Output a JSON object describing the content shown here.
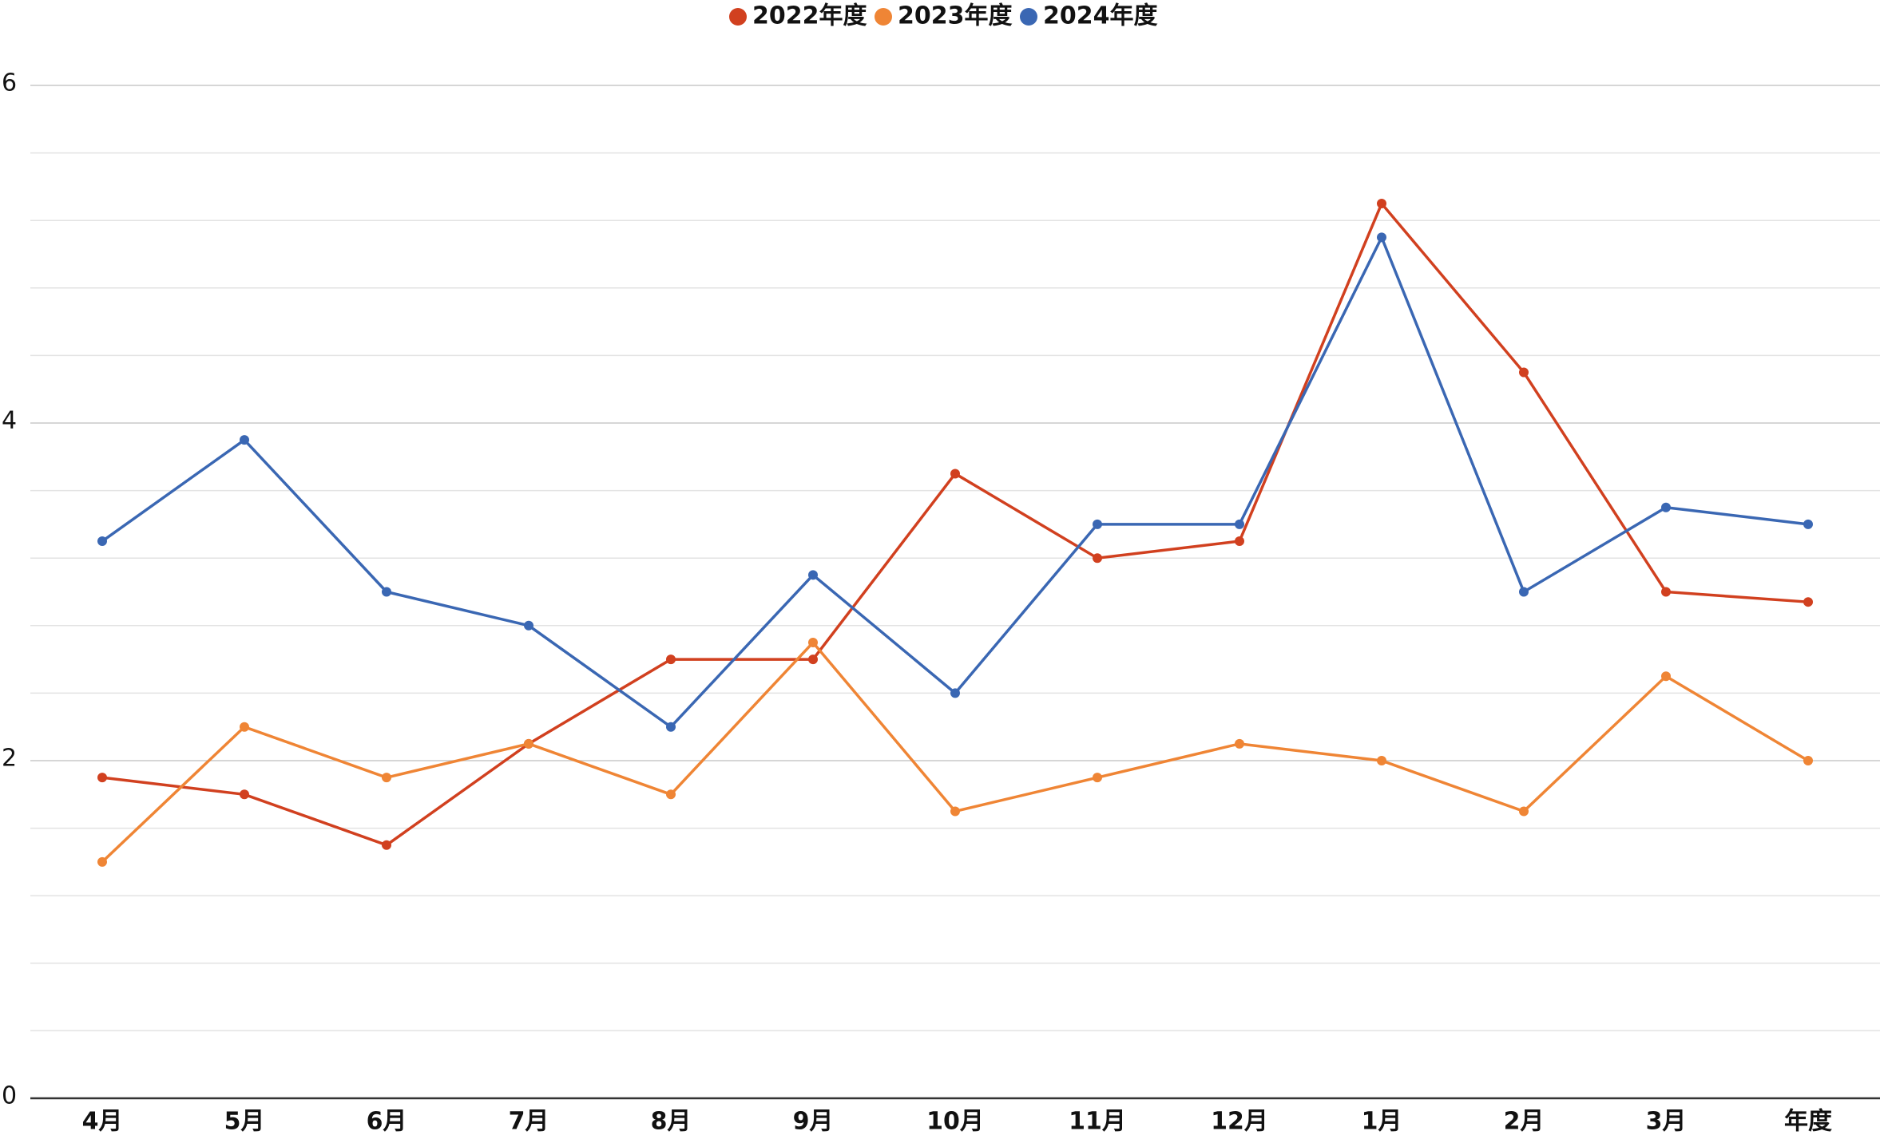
{
  "chart_data": {
    "type": "line",
    "categories": [
      "4月",
      "5月",
      "6月",
      "7月",
      "8月",
      "9月",
      "10月",
      "11月",
      "12月",
      "1月",
      "2月",
      "3月",
      "年度"
    ],
    "series": [
      {
        "name": "2022年度",
        "color": "#d1401f",
        "values": [
          1.9,
          1.8,
          1.5,
          2.1,
          2.6,
          2.6,
          3.7,
          3.2,
          3.3,
          5.3,
          4.3,
          3.0,
          2.94
        ]
      },
      {
        "name": "2023年度",
        "color": "#ef8535",
        "values": [
          1.4,
          2.2,
          1.9,
          2.1,
          1.8,
          2.7,
          1.7,
          1.9,
          2.1,
          2.0,
          1.7,
          2.5,
          2.0
        ]
      },
      {
        "name": "2024年度",
        "color": "#3a67b3",
        "values": [
          3.3,
          3.9,
          3.0,
          2.8,
          2.2,
          3.1,
          2.4,
          3.4,
          3.4,
          5.1,
          3.0,
          3.5,
          3.4
        ]
      }
    ],
    "ylim": [
      0,
      6
    ],
    "yticks": [
      0,
      2,
      4,
      6
    ],
    "minor_yticks": [
      0.4,
      0.8,
      1.2,
      1.6,
      2.4,
      2.8,
      3.2,
      3.6,
      4.4,
      4.8,
      5.2,
      5.6
    ],
    "grid": true,
    "legend": "top"
  }
}
